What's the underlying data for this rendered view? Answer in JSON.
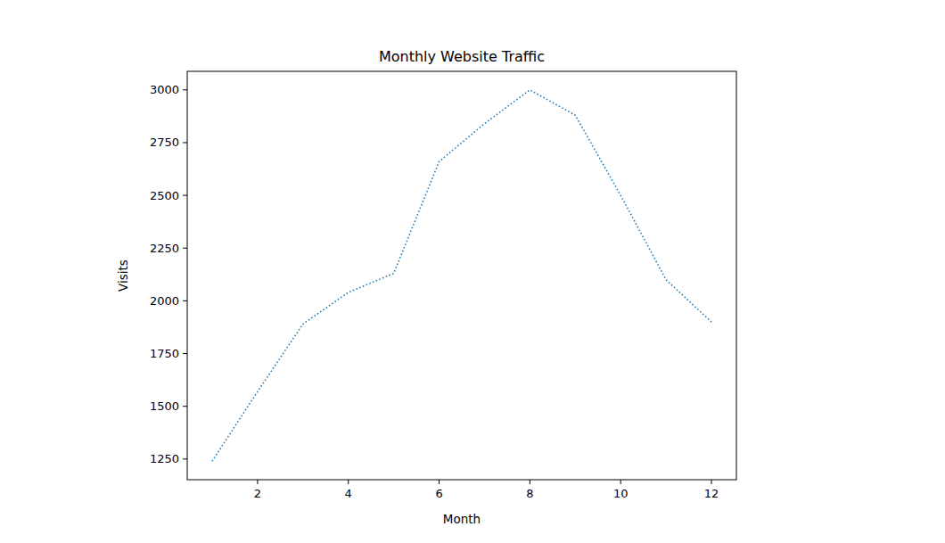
{
  "chart_data": {
    "type": "line",
    "title": "Monthly Website Traffic",
    "x_label": "Month",
    "y_label": "Visits",
    "x": [
      1,
      2,
      3,
      4,
      5,
      6,
      7,
      8,
      9,
      10,
      11,
      12
    ],
    "values": [
      1240,
      1570,
      1890,
      2040,
      2130,
      2660,
      2840,
      3000,
      2880,
      2500,
      2100,
      1900
    ],
    "color": "#1f77b4",
    "line_style": "dotted",
    "marker": "none",
    "xlim": [
      0.45,
      12.55
    ],
    "xticks": [
      2,
      4,
      6,
      8,
      10,
      12
    ],
    "ylim": [
      1152,
      3088
    ],
    "yticks": [
      1250,
      1500,
      1750,
      2000,
      2250,
      2500,
      2750,
      3000
    ],
    "grid": false
  }
}
